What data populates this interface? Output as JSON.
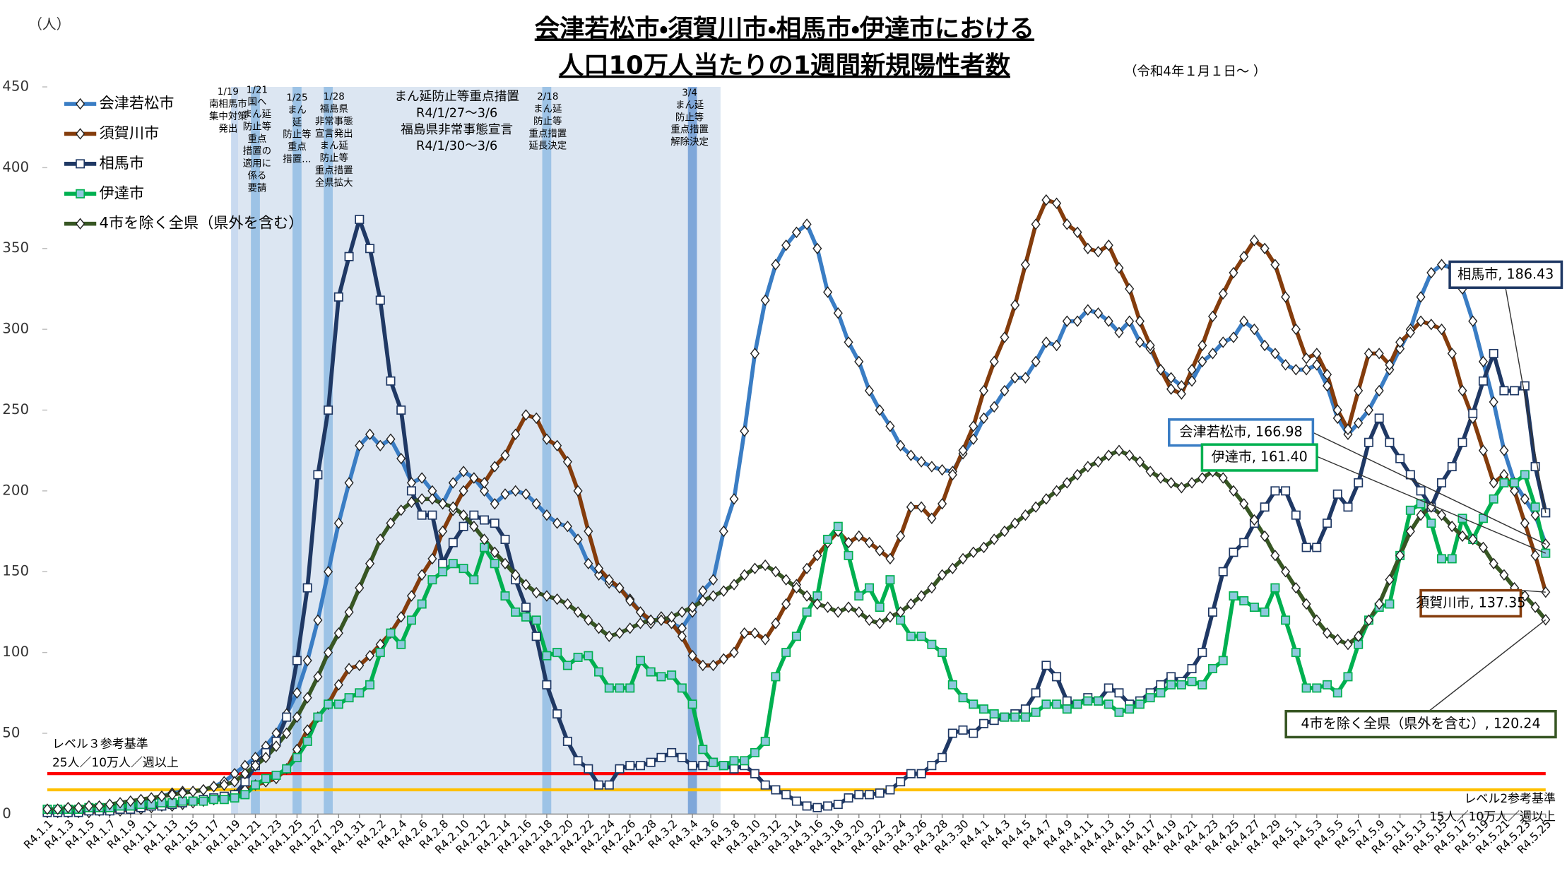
{
  "chart_data": {
    "type": "line",
    "title": [
      "会津若松市・須賀川市・相馬市・伊達市における",
      "人口10万人当たりの1週間新規陽性者数"
    ],
    "subtitle": "（令和4年１月１日～ ）",
    "y_unit": "（人）",
    "ylim": [
      0,
      450
    ],
    "yticks": [
      0,
      50,
      100,
      150,
      200,
      250,
      300,
      350,
      400,
      450
    ],
    "categories": [
      "R4.1.1",
      null,
      "R4.1.3",
      null,
      "R4.1.5",
      null,
      "R4.1.7",
      null,
      "R4.1.9",
      null,
      "R4.1.11",
      null,
      "R4.1.13",
      null,
      "R4.1.15",
      null,
      "R4.1.17",
      null,
      "R4.1.19",
      null,
      "R4.1.21",
      null,
      "R4.1.23",
      null,
      "R4.1.25",
      null,
      "R4.1.27",
      null,
      "R4.1.29",
      null,
      "R4.1.31",
      null,
      "R4.2.2",
      null,
      "R4.2.4",
      null,
      "R4.2.6",
      null,
      "R4.2.8",
      null,
      "R4.2.10",
      null,
      "R4.2.12",
      null,
      "R4.2.14",
      null,
      "R4.2.16",
      null,
      "R4.2.18",
      null,
      "R4.2.20",
      null,
      "R4.2.22",
      null,
      "R4.2.24",
      null,
      "R4.2.26",
      null,
      "R4.2.28",
      null,
      "R4.3.2",
      null,
      "R4.3.4",
      null,
      "R4.3.6",
      null,
      "R4.3.8",
      null,
      "R4.3.10",
      null,
      "R4.3.12",
      null,
      "R4.3.14",
      null,
      "R4.3.16",
      null,
      "R4.3.18",
      null,
      "R4.3.20",
      null,
      "R4.3.22",
      null,
      "R4.3.24",
      null,
      "R4.3.26",
      null,
      "R4.3.28",
      null,
      "R4.3.30",
      null,
      "R4.4.1",
      null,
      "R4.4.3",
      null,
      "R4.4.5",
      null,
      "R4.4.7",
      null,
      "R4.4.9",
      null,
      "R4.4.11",
      null,
      "R4.4.13",
      null,
      "R4.4.15",
      null,
      "R4.4.17",
      null,
      "R4.4.19",
      null,
      "R4.4.21",
      null,
      "R4.4.23",
      null,
      "R4.4.25",
      null,
      "R4.4.27",
      null,
      "R4.4.29",
      null,
      "R4.5.1",
      null,
      "R4.5.3",
      null,
      "R4.5.5",
      null,
      "R4.5.7",
      null,
      "R4.5.9",
      null,
      "R4.5.11",
      null,
      "R4.5.13",
      null,
      "R4.5.15",
      null,
      "R4.5.17",
      null,
      "R4.5.19",
      null,
      "R4.5.21",
      null,
      "R4.5.23",
      null,
      "R4.5.25"
    ],
    "series": [
      {
        "name": "会津若松市",
        "color": "#3a7dc4",
        "marker": "diamond",
        "marker_fill": "#ffffff",
        "values": [
          2,
          2,
          3,
          3,
          3,
          4,
          4,
          5,
          6,
          7,
          9,
          11,
          13,
          14,
          14,
          15,
          17,
          20,
          25,
          30,
          35,
          42,
          50,
          62,
          75,
          95,
          120,
          150,
          180,
          205,
          228,
          235,
          228,
          232,
          220,
          205,
          208,
          200,
          192,
          205,
          212,
          208,
          200,
          192,
          198,
          200,
          198,
          192,
          185,
          180,
          178,
          170,
          155,
          148,
          143,
          140,
          133,
          125,
          118,
          122,
          118,
          115,
          125,
          138,
          145,
          175,
          195,
          237,
          285,
          318,
          340,
          352,
          360,
          365,
          350,
          323,
          310,
          292,
          280,
          262,
          250,
          240,
          228,
          222,
          218,
          215,
          213,
          212,
          223,
          232,
          245,
          252,
          262,
          270,
          270,
          280,
          292,
          290,
          305,
          305,
          312,
          310,
          305,
          298,
          305,
          292,
          288,
          275,
          270,
          265,
          268,
          280,
          285,
          292,
          295,
          305,
          300,
          290,
          285,
          278,
          275,
          275,
          278,
          265,
          245,
          235,
          242,
          250,
          262,
          275,
          288,
          300,
          320,
          335,
          340,
          338,
          325,
          305,
          280,
          255,
          225,
          205,
          195,
          185,
          166.98
        ]
      },
      {
        "name": "須賀川市",
        "color": "#843c0c",
        "marker": "diamond",
        "marker_fill": "#ffffff",
        "values": [
          1,
          1,
          1,
          1,
          1,
          2,
          2,
          2,
          3,
          3,
          4,
          5,
          5,
          6,
          7,
          8,
          9,
          10,
          12,
          15,
          18,
          20,
          22,
          28,
          40,
          52,
          60,
          68,
          80,
          90,
          92,
          98,
          105,
          112,
          122,
          135,
          148,
          158,
          175,
          188,
          200,
          208,
          205,
          215,
          222,
          235,
          247,
          245,
          232,
          228,
          218,
          200,
          175,
          152,
          145,
          140,
          132,
          125,
          120,
          120,
          118,
          110,
          98,
          92,
          92,
          96,
          100,
          112,
          112,
          108,
          118,
          130,
          142,
          152,
          160,
          168,
          175,
          168,
          172,
          168,
          163,
          158,
          172,
          190,
          190,
          183,
          192,
          210,
          225,
          240,
          262,
          280,
          295,
          315,
          340,
          365,
          380,
          378,
          365,
          360,
          350,
          348,
          352,
          338,
          325,
          305,
          290,
          275,
          263,
          260,
          275,
          290,
          308,
          322,
          335,
          345,
          355,
          350,
          340,
          320,
          300,
          282,
          285,
          272,
          250,
          238,
          262,
          285,
          285,
          278,
          292,
          298,
          305,
          303,
          300,
          285,
          262,
          245,
          225,
          205,
          210,
          200,
          180,
          160,
          137.35
        ]
      },
      {
        "name": "相馬市",
        "color": "#1f3864",
        "marker": "square",
        "marker_fill": "#ffffff",
        "values": [
          1,
          1,
          1,
          1,
          2,
          2,
          2,
          3,
          3,
          4,
          5,
          5,
          6,
          7,
          8,
          9,
          10,
          11,
          12,
          20,
          30,
          38,
          45,
          60,
          95,
          140,
          210,
          250,
          320,
          345,
          368,
          350,
          318,
          268,
          250,
          200,
          185,
          185,
          155,
          168,
          178,
          185,
          182,
          180,
          170,
          145,
          128,
          110,
          80,
          62,
          45,
          33,
          28,
          18,
          18,
          28,
          30,
          30,
          32,
          35,
          38,
          35,
          30,
          30,
          32,
          30,
          28,
          30,
          25,
          18,
          15,
          12,
          8,
          5,
          4,
          5,
          6,
          10,
          12,
          12,
          13,
          15,
          20,
          25,
          25,
          30,
          35,
          50,
          52,
          50,
          56,
          58,
          60,
          62,
          65,
          75,
          92,
          85,
          70,
          68,
          72,
          70,
          78,
          75,
          68,
          70,
          75,
          80,
          85,
          82,
          90,
          100,
          125,
          150,
          162,
          168,
          180,
          190,
          200,
          200,
          185,
          165,
          165,
          180,
          198,
          190,
          205,
          230,
          245,
          230,
          220,
          210,
          200,
          190,
          205,
          215,
          230,
          248,
          268,
          285,
          262,
          262,
          265,
          215,
          186.43
        ]
      },
      {
        "name": "伊達市",
        "color": "#00b050",
        "marker": "square",
        "marker_fill": "#8ec8dd",
        "values": [
          3,
          3,
          3,
          3,
          4,
          4,
          4,
          5,
          5,
          6,
          6,
          7,
          7,
          8,
          8,
          8,
          9,
          9,
          10,
          12,
          18,
          22,
          24,
          28,
          35,
          45,
          60,
          68,
          68,
          72,
          75,
          80,
          100,
          112,
          105,
          120,
          130,
          145,
          150,
          155,
          152,
          145,
          165,
          155,
          135,
          125,
          122,
          120,
          98,
          100,
          92,
          97,
          98,
          88,
          78,
          78,
          78,
          95,
          88,
          85,
          86,
          78,
          68,
          40,
          32,
          30,
          33,
          33,
          38,
          45,
          85,
          100,
          110,
          125,
          135,
          170,
          178,
          160,
          135,
          140,
          128,
          145,
          120,
          110,
          110,
          105,
          100,
          80,
          72,
          68,
          65,
          62,
          60,
          60,
          60,
          63,
          68,
          68,
          65,
          68,
          70,
          70,
          68,
          63,
          65,
          68,
          72,
          75,
          80,
          80,
          82,
          80,
          90,
          95,
          135,
          132,
          128,
          125,
          140,
          120,
          100,
          78,
          78,
          80,
          75,
          85,
          105,
          120,
          128,
          130,
          160,
          188,
          192,
          180,
          158,
          158,
          183,
          170,
          183,
          195,
          205,
          205,
          210,
          190,
          161.4
        ]
      },
      {
        "name": "4市を除く全県（県外を含む）",
        "color": "#375623",
        "marker": "diamond",
        "marker_fill": "#ffffff",
        "values": [
          3,
          3,
          4,
          4,
          5,
          5,
          6,
          7,
          8,
          9,
          10,
          11,
          12,
          13,
          14,
          15,
          17,
          18,
          20,
          25,
          30,
          35,
          42,
          50,
          60,
          72,
          85,
          100,
          112,
          125,
          140,
          155,
          170,
          180,
          188,
          193,
          195,
          195,
          192,
          190,
          185,
          178,
          170,
          162,
          155,
          148,
          142,
          137,
          135,
          133,
          130,
          125,
          120,
          115,
          110,
          112,
          115,
          118,
          120,
          120,
          122,
          125,
          128,
          132,
          135,
          138,
          142,
          148,
          152,
          154,
          150,
          145,
          140,
          135,
          130,
          128,
          125,
          128,
          125,
          120,
          118,
          122,
          125,
          130,
          135,
          140,
          148,
          152,
          158,
          162,
          165,
          170,
          175,
          180,
          185,
          190,
          195,
          200,
          205,
          210,
          215,
          218,
          222,
          225,
          222,
          218,
          212,
          208,
          205,
          202,
          205,
          208,
          212,
          208,
          200,
          192,
          182,
          172,
          160,
          150,
          140,
          130,
          120,
          112,
          108,
          105,
          110,
          120,
          130,
          145,
          160,
          175,
          185,
          190,
          185,
          178,
          172,
          170,
          165,
          155,
          148,
          140,
          135,
          128,
          120.24
        ]
      }
    ],
    "reference_lines": [
      {
        "value": 25,
        "color": "#ff0000",
        "label": [
          "レベル３参考基準",
          "25人／10万人／週以上"
        ]
      },
      {
        "value": 15,
        "color": "#ffc000",
        "label": [
          "レベル2参考基準",
          "15人／10万人／週以上"
        ]
      }
    ],
    "events": [
      [
        "1/19",
        "南相馬市",
        "集中対策",
        "発出"
      ],
      [
        "1/21",
        "国へ",
        "まん延",
        "防止等",
        "重点",
        "措置の",
        "適用に",
        "係る",
        "要請"
      ],
      [
        "1/25",
        "まん",
        "延",
        "防止等",
        "重点",
        "措置…"
      ],
      [
        "1/28",
        "福島県",
        "非常事態",
        "宣言発出",
        "まん延",
        "防止等",
        "重点措置",
        "全県拡大"
      ],
      [
        "2/18",
        "まん延",
        "防止等",
        "重点措置",
        "延長決定"
      ],
      [
        "3/4",
        "まん延",
        "防止等",
        "重点措置",
        "解除決定"
      ]
    ],
    "period_note": [
      "まん延防止等重点措置",
      "R4/1/27～3/6",
      "福島県非常事態宣言",
      "R4/1/30～3/6"
    ],
    "end_labels": [
      "相馬市, 186.43",
      "会津若松市, 166.98",
      "伊達市, 161.40",
      "須賀川市, 137.35",
      "4市を除く全県（県外を含む）, 120.24"
    ]
  }
}
